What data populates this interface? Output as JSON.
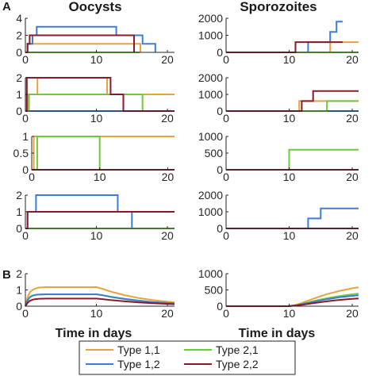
{
  "panel_letters": {
    "a": "A",
    "b": "B"
  },
  "column_titles": {
    "left": "Oocysts",
    "right": "Sporozoites"
  },
  "xlabel": "Time in days",
  "colors": {
    "Type 1,1": "#E8A33A",
    "Type 1,2": "#3B7DD8",
    "Type 2,1": "#6CCB3C",
    "Type 2,2": "#8B1A2B"
  },
  "legend": [
    "Type 1,1",
    "Type 2,1",
    "Type 1,2",
    "Type 2,2"
  ],
  "chart_data": [
    {
      "id": "A1-oocysts",
      "type": "line",
      "xlim": [
        0,
        21
      ],
      "ylim": [
        0,
        4
      ],
      "yticks": [
        0,
        2,
        4
      ],
      "xticks": [
        0,
        10,
        20
      ],
      "show_xticklabels": true,
      "series": [
        {
          "name": "Type 1,1",
          "x": [
            0,
            0.3,
            0.3,
            11.8,
            11.8,
            16.2,
            16.2
          ],
          "y": [
            0,
            0,
            1,
            1,
            1,
            1,
            0
          ]
        },
        {
          "name": "Type 1,2",
          "x": [
            0,
            0.3,
            0.3,
            1,
            1,
            1.6,
            1.6,
            12.8,
            12.8,
            16.5,
            16.5,
            18.3,
            18.3
          ],
          "y": [
            0,
            0,
            1,
            1,
            2,
            2,
            3,
            3,
            2,
            2,
            1,
            1,
            0
          ]
        },
        {
          "name": "Type 2,1",
          "x": [
            0,
            0.3,
            0.3,
            16.1,
            16.1
          ],
          "y": [
            0,
            0,
            0,
            0,
            0
          ]
        },
        {
          "name": "Type 2,2",
          "x": [
            0,
            0.3,
            0.3,
            0.6,
            0.6,
            11,
            11,
            15.3,
            15.3
          ],
          "y": [
            0,
            0,
            1,
            1,
            2,
            2,
            2,
            2,
            0
          ]
        }
      ]
    },
    {
      "id": "A1-sporozoites",
      "type": "line",
      "xlim": [
        0,
        21
      ],
      "ylim": [
        0,
        2000
      ],
      "yticks": [
        0,
        1000,
        2000
      ],
      "xticks": [
        0,
        10,
        20
      ],
      "show_xticklabels": true,
      "series": [
        {
          "name": "Type 1,1",
          "x": [
            0,
            16.5,
            16.5,
            21
          ],
          "y": [
            0,
            0,
            600,
            600
          ]
        },
        {
          "name": "Type 1,2",
          "x": [
            0,
            13,
            13,
            16.5,
            16.5,
            17.5,
            17.5,
            18.5,
            18.5
          ],
          "y": [
            0,
            0,
            600,
            600,
            1200,
            1200,
            1800,
            1800,
            1800
          ]
        },
        {
          "name": "Type 2,1",
          "x": [
            0,
            21
          ],
          "y": [
            0,
            0
          ]
        },
        {
          "name": "Type 2,2",
          "x": [
            0,
            11,
            11,
            18.5
          ],
          "y": [
            0,
            0,
            600,
            600
          ]
        }
      ]
    },
    {
      "id": "A2-oocysts",
      "type": "line",
      "xlim": [
        0,
        21
      ],
      "ylim": [
        0,
        2
      ],
      "yticks": [
        0,
        1,
        2
      ],
      "xticks": [
        0,
        10,
        20
      ],
      "show_xticklabels": true,
      "series": [
        {
          "name": "Type 1,1",
          "x": [
            0,
            0.3,
            0.3,
            1.7,
            1.7,
            11.5,
            11.5,
            21
          ],
          "y": [
            0,
            0,
            1,
            1,
            2,
            2,
            1,
            1
          ]
        },
        {
          "name": "Type 1,2",
          "x": [
            0,
            21
          ],
          "y": [
            0,
            0
          ]
        },
        {
          "name": "Type 2,1",
          "x": [
            0,
            0.5,
            0.5,
            16.5,
            16.5,
            21
          ],
          "y": [
            0,
            0,
            1,
            1,
            0,
            0
          ]
        },
        {
          "name": "Type 2,2",
          "x": [
            0,
            0.2,
            0.2,
            12,
            12,
            13.8,
            13.8,
            21
          ],
          "y": [
            0,
            0,
            2,
            2,
            1,
            1,
            0,
            0
          ]
        }
      ]
    },
    {
      "id": "A2-sporozoites",
      "type": "line",
      "xlim": [
        0,
        21
      ],
      "ylim": [
        0,
        2000
      ],
      "yticks": [
        0,
        1000,
        2000
      ],
      "xticks": [
        0,
        10,
        20
      ],
      "show_xticklabels": true,
      "series": [
        {
          "name": "Type 1,1",
          "x": [
            0,
            11.6,
            11.6,
            21
          ],
          "y": [
            0,
            0,
            600,
            600
          ]
        },
        {
          "name": "Type 1,2",
          "x": [
            0,
            21
          ],
          "y": [
            0,
            0
          ]
        },
        {
          "name": "Type 2,1",
          "x": [
            0,
            16,
            16,
            21
          ],
          "y": [
            0,
            0,
            600,
            600
          ]
        },
        {
          "name": "Type 2,2",
          "x": [
            0,
            12,
            12,
            13.8,
            13.8,
            21
          ],
          "y": [
            0,
            0,
            600,
            600,
            1200,
            1200
          ]
        }
      ]
    },
    {
      "id": "A3-oocysts",
      "type": "line",
      "xlim": [
        0,
        21
      ],
      "ylim": [
        0,
        1
      ],
      "yticks": [
        0,
        0.5,
        1
      ],
      "xticks": [
        0,
        10,
        20
      ],
      "show_xticklabels": true,
      "series": [
        {
          "name": "Type 1,1",
          "x": [
            0,
            0.3,
            0.3,
            21
          ],
          "y": [
            0,
            0,
            1,
            1
          ]
        },
        {
          "name": "Type 1,2",
          "x": [
            0,
            21
          ],
          "y": [
            0,
            0
          ]
        },
        {
          "name": "Type 2,1",
          "x": [
            0,
            0.8,
            0.8,
            10,
            10,
            21
          ],
          "y": [
            0,
            0,
            1,
            1,
            0,
            0
          ]
        },
        {
          "name": "Type 2,2",
          "x": [
            0,
            21
          ],
          "y": [
            0,
            0
          ]
        }
      ]
    },
    {
      "id": "A3-sporozoites",
      "type": "line",
      "xlim": [
        0,
        21
      ],
      "ylim": [
        0,
        1000
      ],
      "yticks": [
        0,
        500,
        1000
      ],
      "xticks": [
        0,
        10,
        20
      ],
      "show_xticklabels": true,
      "series": [
        {
          "name": "Type 1,1",
          "x": [
            0,
            21
          ],
          "y": [
            0,
            0
          ]
        },
        {
          "name": "Type 1,2",
          "x": [
            0,
            21
          ],
          "y": [
            0,
            0
          ]
        },
        {
          "name": "Type 2,1",
          "x": [
            0,
            10,
            10,
            21
          ],
          "y": [
            0,
            0,
            600,
            600
          ]
        },
        {
          "name": "Type 2,2",
          "x": [
            0,
            21
          ],
          "y": [
            0,
            0
          ]
        }
      ]
    },
    {
      "id": "A4-oocysts",
      "type": "line",
      "xlim": [
        0,
        21
      ],
      "ylim": [
        0,
        2
      ],
      "yticks": [
        0,
        1,
        2
      ],
      "xticks": [
        0,
        10,
        20
      ],
      "show_xticklabels": true,
      "series": [
        {
          "name": "Type 1,1",
          "x": [
            0,
            21
          ],
          "y": [
            0,
            0
          ]
        },
        {
          "name": "Type 1,2",
          "x": [
            0,
            0.3,
            0.3,
            1.5,
            1.5,
            13,
            13,
            15,
            15,
            21
          ],
          "y": [
            0,
            0,
            1,
            1,
            2,
            2,
            1,
            1,
            0,
            0
          ]
        },
        {
          "name": "Type 2,1",
          "x": [
            0,
            21
          ],
          "y": [
            0,
            0
          ]
        },
        {
          "name": "Type 2,2",
          "x": [
            0,
            0.3,
            0.3,
            21
          ],
          "y": [
            0,
            0,
            1,
            1
          ]
        }
      ]
    },
    {
      "id": "A4-sporozoites",
      "type": "line",
      "xlim": [
        0,
        21
      ],
      "ylim": [
        0,
        2000
      ],
      "yticks": [
        0,
        1000,
        2000
      ],
      "xticks": [
        0,
        10,
        20
      ],
      "show_xticklabels": true,
      "series": [
        {
          "name": "Type 1,1",
          "x": [
            0,
            21
          ],
          "y": [
            0,
            0
          ]
        },
        {
          "name": "Type 1,2",
          "x": [
            0,
            13,
            13,
            15,
            15,
            21
          ],
          "y": [
            0,
            0,
            600,
            600,
            1200,
            1200
          ]
        },
        {
          "name": "Type 2,1",
          "x": [
            0,
            21
          ],
          "y": [
            0,
            0
          ]
        },
        {
          "name": "Type 2,2",
          "x": [
            0,
            21
          ],
          "y": [
            0,
            0
          ]
        }
      ]
    },
    {
      "id": "B-oocysts",
      "type": "line",
      "xlim": [
        0,
        21
      ],
      "ylim": [
        0,
        2
      ],
      "yticks": [
        0,
        1,
        2
      ],
      "xticks": [
        0,
        10,
        20
      ],
      "show_xticklabels": true,
      "series": [
        {
          "name": "Type 1,1",
          "x": [
            0,
            0.3,
            0.6,
            1,
            1.5,
            2,
            3,
            5,
            8,
            10,
            11,
            12,
            14,
            16,
            18,
            20,
            21
          ],
          "y": [
            0,
            0.55,
            0.85,
            1.0,
            1.1,
            1.15,
            1.17,
            1.17,
            1.17,
            1.17,
            1.05,
            0.9,
            0.68,
            0.5,
            0.37,
            0.28,
            0.24
          ]
        },
        {
          "name": "Type 2,1",
          "x": [
            0,
            0.3,
            0.6,
            1,
            1.5,
            2,
            3,
            5,
            8,
            10,
            11,
            12,
            14,
            16,
            18,
            20,
            21
          ],
          "y": [
            0,
            0.35,
            0.55,
            0.65,
            0.7,
            0.72,
            0.73,
            0.73,
            0.73,
            0.73,
            0.66,
            0.57,
            0.43,
            0.32,
            0.24,
            0.18,
            0.16
          ]
        },
        {
          "name": "Type 1,2",
          "x": [
            0,
            0.3,
            0.6,
            1,
            1.5,
            2,
            3,
            5,
            8,
            10,
            11,
            12,
            14,
            16,
            18,
            20,
            21
          ],
          "y": [
            0,
            0.35,
            0.55,
            0.65,
            0.7,
            0.72,
            0.73,
            0.73,
            0.73,
            0.73,
            0.67,
            0.58,
            0.45,
            0.34,
            0.26,
            0.2,
            0.18
          ]
        },
        {
          "name": "Type 2,2",
          "x": [
            0,
            0.3,
            0.6,
            1,
            1.5,
            2,
            3,
            5,
            8,
            10,
            11,
            12,
            14,
            16,
            18,
            20,
            21
          ],
          "y": [
            0,
            0.2,
            0.32,
            0.4,
            0.44,
            0.46,
            0.47,
            0.47,
            0.47,
            0.47,
            0.43,
            0.38,
            0.3,
            0.23,
            0.18,
            0.14,
            0.12
          ]
        }
      ]
    },
    {
      "id": "B-sporozoites",
      "type": "line",
      "xlim": [
        0,
        21
      ],
      "ylim": [
        0,
        1000
      ],
      "yticks": [
        0,
        500,
        1000
      ],
      "xticks": [
        0,
        10,
        20
      ],
      "show_xticklabels": true,
      "series": [
        {
          "name": "Type 1,1",
          "x": [
            0,
            9.5,
            10,
            11,
            12,
            13,
            14,
            15,
            16,
            17,
            18,
            19,
            20,
            21
          ],
          "y": [
            0,
            0,
            5,
            40,
            100,
            170,
            240,
            310,
            370,
            420,
            470,
            510,
            550,
            580
          ]
        },
        {
          "name": "Type 2,1",
          "x": [
            0,
            9.5,
            10,
            11,
            12,
            13,
            14,
            15,
            16,
            17,
            18,
            19,
            20,
            21
          ],
          "y": [
            0,
            0,
            4,
            28,
            70,
            115,
            160,
            205,
            245,
            280,
            310,
            340,
            365,
            385
          ]
        },
        {
          "name": "Type 1,2",
          "x": [
            0,
            9.5,
            10,
            11,
            12,
            13,
            14,
            15,
            16,
            17,
            18,
            19,
            20,
            21
          ],
          "y": [
            0,
            0,
            3,
            25,
            62,
            102,
            142,
            180,
            215,
            245,
            272,
            295,
            318,
            335
          ]
        },
        {
          "name": "Type 2,2",
          "x": [
            0,
            9.5,
            10,
            11,
            12,
            13,
            14,
            15,
            16,
            17,
            18,
            19,
            20,
            21
          ],
          "y": [
            0,
            0,
            2,
            16,
            42,
            70,
            98,
            125,
            150,
            172,
            192,
            210,
            226,
            240
          ]
        }
      ]
    }
  ]
}
